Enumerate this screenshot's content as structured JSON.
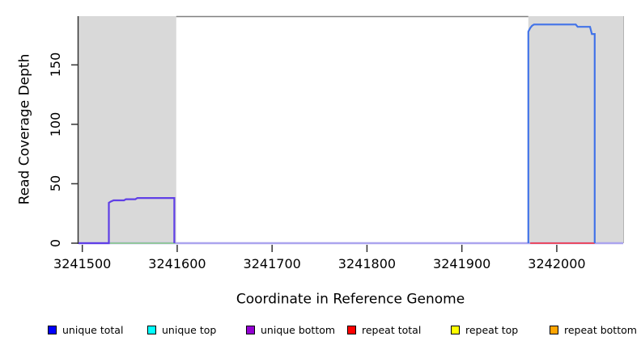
{
  "chart_data": {
    "type": "line",
    "title": "",
    "xlabel": "Coordinate in Reference Genome",
    "ylabel": "Read Coverage Depth",
    "xlim": [
      3241496,
      3242070
    ],
    "ylim": [
      0,
      191
    ],
    "x_ticks": [
      3241500,
      3241600,
      3241700,
      3241800,
      3241900,
      3242000
    ],
    "y_ticks": [
      0,
      50,
      100,
      150
    ],
    "grid": false,
    "legend_position": "bottom",
    "highlight_regions": [
      {
        "name": "shaded-region-left",
        "x0": 3241496,
        "x1": 3241599,
        "color": "#d9d9d9"
      },
      {
        "name": "shaded-region-right",
        "x0": 3241970,
        "x1": 3242070,
        "color": "#d9d9d9"
      }
    ],
    "series": [
      {
        "name": "zero-baseline",
        "color": "#aba4ee",
        "width": 2.6,
        "points": [
          [
            3241496,
            0
          ],
          [
            3242070,
            0
          ]
        ]
      },
      {
        "name": "unique top",
        "color": "#8fcb8f",
        "width": 1.8,
        "points": [
          [
            3241529,
            0
          ],
          [
            3241598,
            0
          ]
        ]
      },
      {
        "name": "unique bottom",
        "color": "#5f3fe6",
        "width": 2.2,
        "points": [
          [
            3241496,
            0
          ],
          [
            3241528,
            0
          ],
          [
            3241528,
            34
          ],
          [
            3241530,
            35
          ],
          [
            3241533,
            36
          ],
          [
            3241544,
            36
          ],
          [
            3241546,
            37
          ],
          [
            3241556,
            37
          ],
          [
            3241558,
            38
          ],
          [
            3241597,
            38
          ],
          [
            3241597,
            0
          ]
        ]
      },
      {
        "name": "repeat total",
        "color": "#f23d4c",
        "width": 1.8,
        "points": [
          [
            3241972,
            0
          ],
          [
            3242040,
            0
          ]
        ]
      },
      {
        "name": "unique total",
        "color": "#4273e8",
        "width": 2.2,
        "points": [
          [
            3241970,
            0
          ],
          [
            3241970,
            178
          ],
          [
            3241972,
            181
          ],
          [
            3241974,
            183
          ],
          [
            3241976,
            184
          ],
          [
            3242020,
            184
          ],
          [
            3242022,
            182
          ],
          [
            3242035,
            182
          ],
          [
            3242037,
            176
          ],
          [
            3242040,
            176
          ],
          [
            3242040,
            0
          ]
        ]
      }
    ],
    "legend": [
      {
        "label": "unique total",
        "color": "#0000ff"
      },
      {
        "label": "unique top",
        "color": "#00ffff"
      },
      {
        "label": "unique bottom",
        "color": "#9400d3"
      },
      {
        "label": "repeat total",
        "color": "#ff0000"
      },
      {
        "label": "repeat top",
        "color": "#ffff00"
      },
      {
        "label": "repeat bottom",
        "color": "#ffa500"
      }
    ],
    "axis_color": "#333333",
    "top_border_color": "#808080"
  }
}
